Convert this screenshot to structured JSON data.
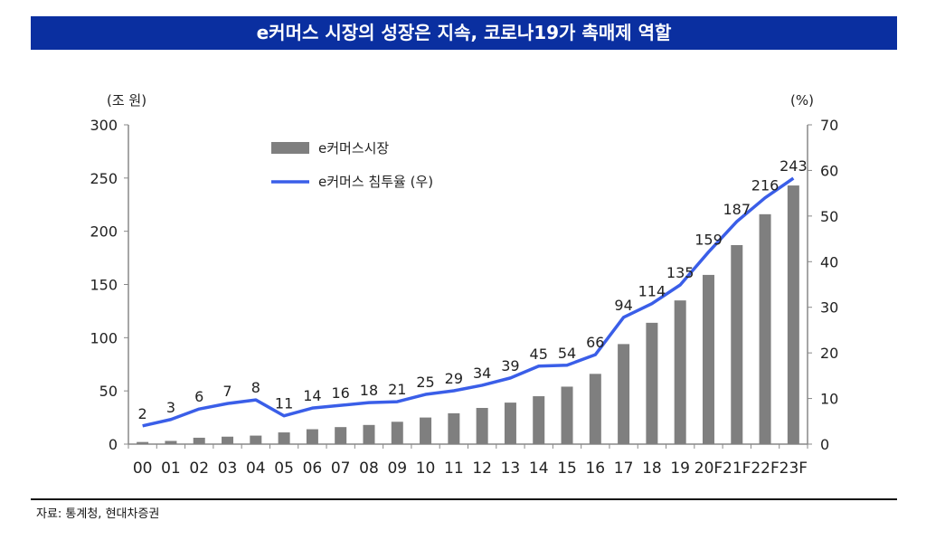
{
  "title": "e커머스 시장의 성장은 지속, 코로나19가 촉매제 역할",
  "source": "자료: 통계청, 현대차증권",
  "colors": {
    "banner": "#0a2fa0",
    "bar": "#7f7f7f",
    "line": "#3a5ee8"
  },
  "chart_data": {
    "type": "bar+line",
    "categories": [
      "00",
      "01",
      "02",
      "03",
      "04",
      "05",
      "06",
      "07",
      "08",
      "09",
      "10",
      "11",
      "12",
      "13",
      "14",
      "15",
      "16",
      "17",
      "18",
      "19",
      "20F",
      "21F",
      "22F",
      "23F"
    ],
    "y_left": {
      "label": "(조 원)",
      "range": [
        0,
        300
      ],
      "ticks": [
        0,
        50,
        100,
        150,
        200,
        250,
        300
      ]
    },
    "y_right": {
      "label": "(%)",
      "range": [
        0,
        70
      ],
      "ticks": [
        0,
        10,
        20,
        30,
        40,
        50,
        60,
        70
      ]
    },
    "legend_position": "top-left",
    "series": [
      {
        "name": "e커머스시장",
        "type": "bar",
        "axis": "left",
        "values": [
          2,
          3,
          6,
          7,
          8,
          11,
          14,
          16,
          18,
          21,
          25,
          29,
          34,
          39,
          45,
          54,
          66,
          94,
          114,
          135,
          159,
          187,
          216,
          243
        ]
      },
      {
        "name": "e커머스  침투율 (우)",
        "type": "line",
        "axis": "right",
        "values": [
          4.0,
          5.4,
          7.7,
          8.9,
          9.7,
          6.2,
          7.9,
          8.5,
          9.1,
          9.3,
          10.9,
          11.7,
          12.9,
          14.5,
          17.1,
          17.3,
          19.6,
          27.8,
          30.8,
          34.9,
          42.1,
          48.8,
          54.0,
          58.3
        ]
      }
    ]
  }
}
